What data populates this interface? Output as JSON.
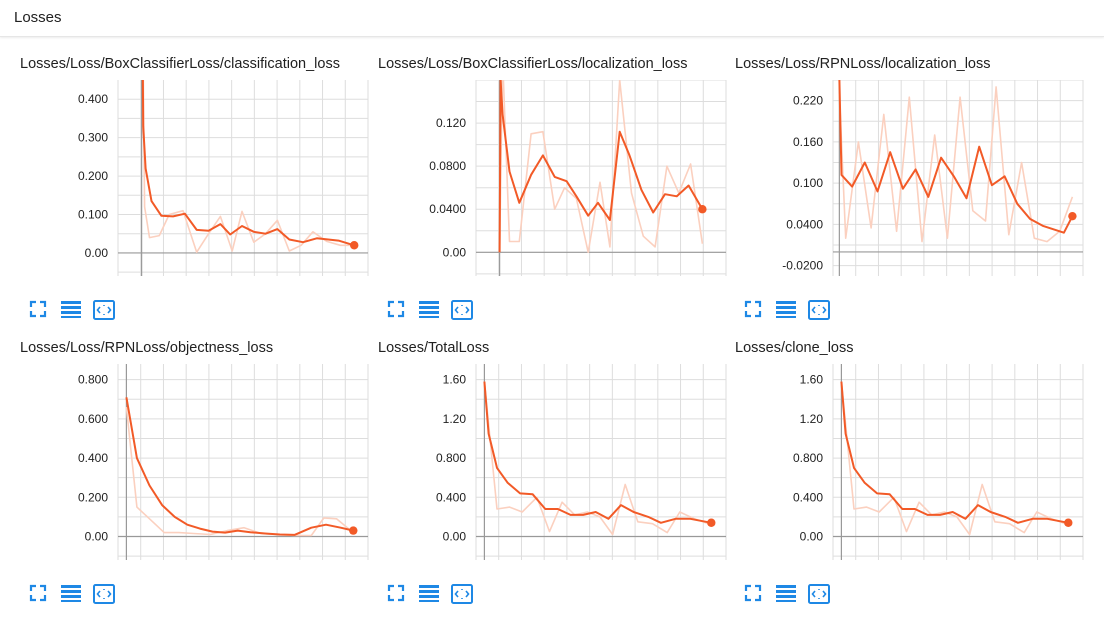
{
  "header": {
    "title": "Losses"
  },
  "colors": {
    "smoothed": "#f25a27",
    "raw": "#fbd0bf",
    "grid": "#dddddd",
    "axis": "#999999",
    "tool": "#1e88e5"
  },
  "toolbar": {
    "icons": [
      "fit-to-screen-icon",
      "data-table-icon",
      "reset-zoom-icon"
    ]
  },
  "chart_data": [
    {
      "type": "line",
      "title": "Losses/Loss/BoxClassifierLoss/classification_loss",
      "yticks": [
        "0.400",
        "0.300",
        "0.200",
        "0.100",
        "0.00"
      ],
      "ytick_values": [
        0.4,
        0.3,
        0.2,
        0.1,
        0.0
      ],
      "ylim": [
        -0.06,
        0.45
      ],
      "xlim": [
        -1.2,
        11.5
      ],
      "series": [
        {
          "values": [
            0.9,
            0.12,
            0.04,
            0.045,
            0.1,
            0.11,
            0.002,
            0.05,
            0.095,
            0.005,
            0.108,
            0.028,
            0.05,
            0.085,
            0.005,
            0.02,
            0.055,
            0.03,
            0.02,
            0.02
          ],
          "x": [
            0,
            0.15,
            0.4,
            0.9,
            1.4,
            2.1,
            2.8,
            3.4,
            4.0,
            4.6,
            5.1,
            5.7,
            6.3,
            6.9,
            7.5,
            8.1,
            8.7,
            9.4,
            10.1,
            10.8
          ]
        },
        {
          "values": [
            0.9,
            0.33,
            0.22,
            0.135,
            0.097,
            0.095,
            0.102,
            0.06,
            0.058,
            0.075,
            0.048,
            0.07,
            0.055,
            0.05,
            0.062,
            0.035,
            0.028,
            0.038,
            0.032,
            0.02
          ],
          "x": [
            0,
            0.08,
            0.2,
            0.5,
            1.0,
            1.6,
            2.2,
            2.8,
            3.4,
            4.0,
            4.5,
            5.1,
            5.7,
            6.3,
            6.9,
            7.5,
            8.2,
            8.9,
            10.0,
            10.8
          ]
        }
      ]
    },
    {
      "type": "line",
      "title": "Losses/Loss/BoxClassifierLoss/localization_loss",
      "yticks": [
        "0.120",
        "0.0800",
        "0.0400",
        "0.00"
      ],
      "ytick_values": [
        0.12,
        0.08,
        0.04,
        0.0
      ],
      "ylim": [
        -0.022,
        0.16
      ],
      "xlim": [
        -1.2,
        11.5
      ],
      "series": [
        {
          "values": [
            0.0,
            0.18,
            0.01,
            0.01,
            0.11,
            0.112,
            0.04,
            0.06,
            0.05,
            0.0,
            0.065,
            0.005,
            0.16,
            0.055,
            0.015,
            0.005,
            0.08,
            0.055,
            0.082,
            0.008
          ],
          "x": [
            0,
            0.15,
            0.5,
            1.0,
            1.6,
            2.2,
            2.8,
            3.3,
            3.9,
            4.5,
            5.1,
            5.6,
            6.1,
            6.7,
            7.3,
            7.9,
            8.5,
            9.1,
            9.7,
            10.3
          ]
        },
        {
          "values": [
            0.0,
            0.16,
            0.128,
            0.075,
            0.046,
            0.072,
            0.09,
            0.07,
            0.066,
            0.052,
            0.034,
            0.046,
            0.03,
            0.112,
            0.09,
            0.058,
            0.037,
            0.054,
            0.052,
            0.062,
            0.04
          ],
          "x": [
            0,
            0.05,
            0.15,
            0.5,
            1.0,
            1.6,
            2.2,
            2.8,
            3.4,
            3.9,
            4.5,
            5.0,
            5.6,
            6.1,
            6.6,
            7.2,
            7.8,
            8.4,
            9.0,
            9.6,
            10.3
          ]
        }
      ]
    },
    {
      "type": "line",
      "title": "Losses/Loss/RPNLoss/localization_loss",
      "yticks": [
        "0.220",
        "0.160",
        "0.100",
        "0.0400",
        "-0.0200"
      ],
      "ytick_values": [
        0.22,
        0.16,
        0.1,
        0.04,
        -0.02
      ],
      "ylim": [
        -0.035,
        0.25
      ],
      "xlim": [
        -0.3,
        11.5
      ],
      "series": [
        {
          "values": [
            0.23,
            0.02,
            0.16,
            0.035,
            0.2,
            0.03,
            0.225,
            0.015,
            0.17,
            0.02,
            0.225,
            0.06,
            0.045,
            0.24,
            0.025,
            0.13,
            0.02,
            0.015,
            0.03,
            0.08
          ],
          "x": [
            0,
            0.3,
            0.9,
            1.5,
            2.1,
            2.7,
            3.3,
            3.9,
            4.5,
            5.1,
            5.7,
            6.3,
            6.9,
            7.4,
            8.0,
            8.6,
            9.2,
            9.8,
            10.4,
            11.0
          ]
        },
        {
          "values": [
            0.25,
            0.112,
            0.095,
            0.13,
            0.088,
            0.145,
            0.092,
            0.12,
            0.08,
            0.137,
            0.11,
            0.078,
            0.153,
            0.097,
            0.11,
            0.07,
            0.048,
            0.038,
            0.028,
            0.052
          ],
          "x": [
            0,
            0.1,
            0.6,
            1.2,
            1.8,
            2.4,
            3.0,
            3.6,
            4.2,
            4.8,
            5.4,
            6.0,
            6.6,
            7.2,
            7.8,
            8.4,
            9.0,
            9.6,
            10.6,
            11.0
          ]
        }
      ]
    },
    {
      "type": "line",
      "title": "Losses/Loss/RPNLoss/objectness_loss",
      "yticks": [
        "0.800",
        "0.600",
        "0.400",
        "0.200",
        "0.00"
      ],
      "ytick_values": [
        0.8,
        0.6,
        0.4,
        0.2,
        0.0
      ],
      "ylim": [
        -0.12,
        0.88
      ],
      "xlim": [
        -0.4,
        11.5
      ],
      "series": [
        {
          "values": [
            0.66,
            0.15,
            0.09,
            0.02,
            0.02,
            0.015,
            0.01,
            0.03,
            0.045,
            0.015,
            0.01,
            0.005,
            0.005,
            0.095,
            0.09,
            0.02
          ],
          "x": [
            0,
            0.5,
            1.1,
            1.8,
            2.5,
            3.2,
            4.0,
            4.8,
            5.6,
            6.4,
            7.2,
            8.0,
            8.8,
            9.4,
            10.0,
            10.8
          ]
        },
        {
          "values": [
            0.71,
            0.4,
            0.26,
            0.16,
            0.1,
            0.06,
            0.04,
            0.025,
            0.02,
            0.03,
            0.022,
            0.015,
            0.01,
            0.008,
            0.045,
            0.06,
            0.045,
            0.03
          ],
          "x": [
            0,
            0.5,
            1.1,
            1.7,
            2.3,
            2.9,
            3.5,
            4.1,
            4.7,
            5.3,
            5.9,
            6.6,
            7.3,
            8.0,
            8.8,
            9.5,
            10.2,
            10.8
          ]
        }
      ]
    },
    {
      "type": "line",
      "title": "Losses/TotalLoss",
      "yticks": [
        "1.60",
        "1.20",
        "0.800",
        "0.400",
        "0.00"
      ],
      "ytick_values": [
        1.6,
        1.2,
        0.8,
        0.4,
        0.0
      ],
      "ylim": [
        -0.24,
        1.76
      ],
      "xlim": [
        -0.4,
        11.5
      ],
      "series": [
        {
          "values": [
            1.58,
            0.28,
            0.3,
            0.25,
            0.4,
            0.05,
            0.35,
            0.22,
            0.25,
            0.2,
            0.02,
            0.53,
            0.15,
            0.13,
            0.04,
            0.25,
            0.18,
            0.12
          ],
          "x": [
            0,
            0.6,
            1.2,
            1.8,
            2.5,
            3.1,
            3.7,
            4.3,
            4.9,
            5.5,
            6.1,
            6.7,
            7.3,
            8.0,
            8.7,
            9.3,
            10.0,
            10.8
          ]
        },
        {
          "values": [
            1.58,
            1.05,
            0.7,
            0.55,
            0.44,
            0.43,
            0.28,
            0.28,
            0.22,
            0.22,
            0.25,
            0.18,
            0.32,
            0.25,
            0.2,
            0.14,
            0.18,
            0.18,
            0.14
          ],
          "x": [
            0,
            0.2,
            0.6,
            1.1,
            1.7,
            2.3,
            2.9,
            3.5,
            4.1,
            4.7,
            5.3,
            5.9,
            6.5,
            7.1,
            7.8,
            8.4,
            9.1,
            9.8,
            10.8
          ]
        }
      ]
    },
    {
      "type": "line",
      "title": "Losses/clone_loss",
      "yticks": [
        "1.60",
        "1.20",
        "0.800",
        "0.400",
        "0.00"
      ],
      "ytick_values": [
        1.6,
        1.2,
        0.8,
        0.4,
        0.0
      ],
      "ylim": [
        -0.24,
        1.76
      ],
      "xlim": [
        -0.4,
        11.5
      ],
      "series": [
        {
          "values": [
            1.58,
            0.28,
            0.3,
            0.25,
            0.4,
            0.05,
            0.35,
            0.22,
            0.25,
            0.2,
            0.02,
            0.53,
            0.15,
            0.13,
            0.04,
            0.25,
            0.18,
            0.12
          ],
          "x": [
            0,
            0.6,
            1.2,
            1.8,
            2.5,
            3.1,
            3.7,
            4.3,
            4.9,
            5.5,
            6.1,
            6.7,
            7.3,
            8.0,
            8.7,
            9.3,
            10.0,
            10.8
          ]
        },
        {
          "values": [
            1.58,
            1.05,
            0.7,
            0.55,
            0.44,
            0.43,
            0.28,
            0.28,
            0.22,
            0.22,
            0.25,
            0.18,
            0.32,
            0.25,
            0.2,
            0.14,
            0.18,
            0.18,
            0.14
          ],
          "x": [
            0,
            0.2,
            0.6,
            1.1,
            1.7,
            2.3,
            2.9,
            3.5,
            4.1,
            4.7,
            5.3,
            5.9,
            6.5,
            7.1,
            7.8,
            8.4,
            9.1,
            9.8,
            10.8
          ]
        }
      ]
    }
  ]
}
